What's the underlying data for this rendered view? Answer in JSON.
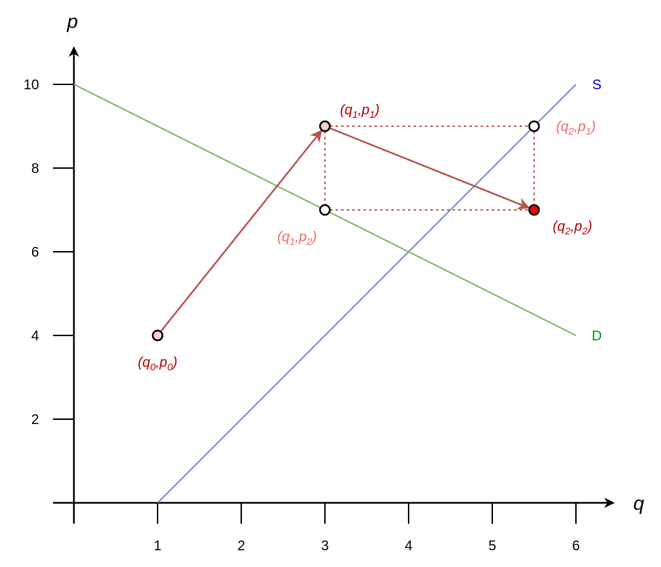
{
  "chart_data": {
    "type": "line",
    "xlabel": "q",
    "ylabel": "p",
    "xlim": [
      0,
      6
    ],
    "ylim": [
      0,
      10
    ],
    "xticks": [
      1,
      2,
      3,
      4,
      5,
      6
    ],
    "yticks": [
      2,
      4,
      6,
      8,
      10
    ],
    "grid": false,
    "series": [
      {
        "name": "S",
        "color": "#6c8ebf",
        "label_color": "#0000cc",
        "x": [
          1,
          6
        ],
        "y": [
          0,
          10
        ]
      },
      {
        "name": "D",
        "color": "#82b366",
        "label_color": "#009900",
        "x": [
          0,
          6
        ],
        "y": [
          10,
          4
        ]
      }
    ],
    "points": [
      {
        "id": "q0p0",
        "q": 1,
        "p": 4,
        "fill": "#f8cecc",
        "label_q": "q",
        "label_q_sub": "0",
        "label_p": "p",
        "label_p_sub": "0",
        "label_color": "#b20000",
        "label_pos": "below"
      },
      {
        "id": "q1p1",
        "q": 3,
        "p": 9,
        "fill": "#f8cecc",
        "label_q": "q",
        "label_q_sub": "1",
        "label_p": "p",
        "label_p_sub": "1",
        "label_color": "#b20000",
        "label_pos": "above-right"
      },
      {
        "id": "q1p2",
        "q": 3,
        "p": 7,
        "fill": "#ffffff",
        "label_q": "q",
        "label_q_sub": "1",
        "label_p": "p",
        "label_p_sub": "2",
        "label_color": "#ea6b66",
        "label_pos": "below-left"
      },
      {
        "id": "q2p1",
        "q": 5.5,
        "p": 9,
        "fill": "#ffffff",
        "label_q": "q",
        "label_q_sub": "2",
        "label_p": "p",
        "label_p_sub": "1",
        "label_color": "#ea6b66",
        "label_pos": "right"
      },
      {
        "id": "q2p2",
        "q": 5.5,
        "p": 7,
        "fill": "#ff0000",
        "label_q": "q",
        "label_q_sub": "2",
        "label_p": "p",
        "label_p_sub": "2",
        "label_color": "#b20000",
        "label_pos": "below-right"
      }
    ],
    "arrows": [
      {
        "from": [
          1,
          4
        ],
        "to": [
          3,
          9
        ],
        "color": "#b85450"
      },
      {
        "from": [
          3,
          9
        ],
        "to": [
          5.5,
          7
        ],
        "color": "#b85450"
      }
    ],
    "dotted_lines": [
      {
        "from": [
          3,
          9
        ],
        "to": [
          5.5,
          9
        ],
        "color": "#b85450"
      },
      {
        "from": [
          3,
          7
        ],
        "to": [
          5.5,
          7
        ],
        "color": "#b85450"
      },
      {
        "from": [
          3,
          9
        ],
        "to": [
          3,
          7
        ],
        "color": "#b85450"
      },
      {
        "from": [
          5.5,
          9
        ],
        "to": [
          5.5,
          7
        ],
        "color": "#b85450"
      }
    ]
  }
}
